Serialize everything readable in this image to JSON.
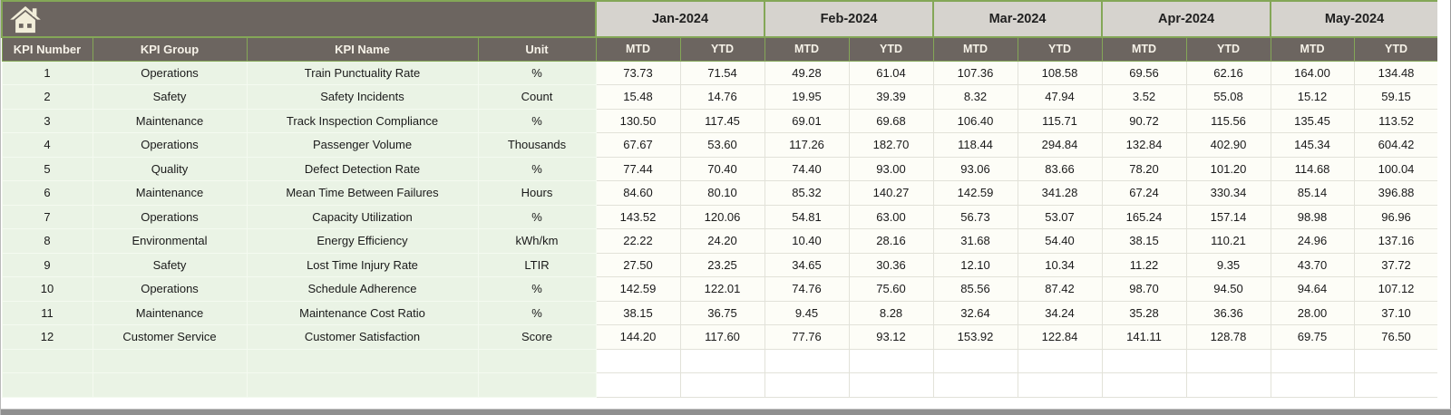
{
  "table": {
    "corner_icon": "home-icon",
    "months": [
      "Jan-2024",
      "Feb-2024",
      "Mar-2024",
      "Apr-2024",
      "May-2024"
    ],
    "sub_headers": [
      "MTD",
      "YTD"
    ],
    "kpi_headers": [
      "KPI Number",
      "KPI Group",
      "KPI Name",
      "Unit"
    ],
    "rows": [
      {
        "number": "1",
        "group": "Operations",
        "name": "Train Punctuality Rate",
        "unit": "%",
        "values": [
          "73.73",
          "71.54",
          "49.28",
          "61.04",
          "107.36",
          "108.58",
          "69.56",
          "62.16",
          "164.00",
          "134.48"
        ]
      },
      {
        "number": "2",
        "group": "Safety",
        "name": "Safety Incidents",
        "unit": "Count",
        "values": [
          "15.48",
          "14.76",
          "19.95",
          "39.39",
          "8.32",
          "47.94",
          "3.52",
          "55.08",
          "15.12",
          "59.15"
        ]
      },
      {
        "number": "3",
        "group": "Maintenance",
        "name": "Track Inspection Compliance",
        "unit": "%",
        "values": [
          "130.50",
          "117.45",
          "69.01",
          "69.68",
          "106.40",
          "115.71",
          "90.72",
          "115.56",
          "135.45",
          "113.52"
        ]
      },
      {
        "number": "4",
        "group": "Operations",
        "name": "Passenger Volume",
        "unit": "Thousands",
        "values": [
          "67.67",
          "53.60",
          "117.26",
          "182.70",
          "118.44",
          "294.84",
          "132.84",
          "402.90",
          "145.34",
          "604.42"
        ]
      },
      {
        "number": "5",
        "group": "Quality",
        "name": "Defect Detection Rate",
        "unit": "%",
        "values": [
          "77.44",
          "70.40",
          "74.40",
          "93.00",
          "93.06",
          "83.66",
          "78.20",
          "101.20",
          "114.68",
          "100.04"
        ]
      },
      {
        "number": "6",
        "group": "Maintenance",
        "name": "Mean Time Between Failures",
        "unit": "Hours",
        "values": [
          "84.60",
          "80.10",
          "85.32",
          "140.27",
          "142.59",
          "341.28",
          "67.24",
          "330.34",
          "85.14",
          "396.88"
        ]
      },
      {
        "number": "7",
        "group": "Operations",
        "name": "Capacity Utilization",
        "unit": "%",
        "values": [
          "143.52",
          "120.06",
          "54.81",
          "63.00",
          "56.73",
          "53.07",
          "165.24",
          "157.14",
          "98.98",
          "96.96"
        ]
      },
      {
        "number": "8",
        "group": "Environmental",
        "name": "Energy Efficiency",
        "unit": "kWh/km",
        "values": [
          "22.22",
          "24.20",
          "10.40",
          "28.16",
          "31.68",
          "54.40",
          "38.15",
          "110.21",
          "24.96",
          "137.16"
        ]
      },
      {
        "number": "9",
        "group": "Safety",
        "name": "Lost Time Injury Rate",
        "unit": "LTIR",
        "values": [
          "27.50",
          "23.25",
          "34.65",
          "30.36",
          "12.10",
          "10.34",
          "11.22",
          "9.35",
          "43.70",
          "37.72"
        ]
      },
      {
        "number": "10",
        "group": "Operations",
        "name": "Schedule Adherence",
        "unit": "%",
        "values": [
          "142.59",
          "122.01",
          "74.76",
          "75.60",
          "85.56",
          "87.42",
          "98.70",
          "94.50",
          "94.64",
          "107.12"
        ]
      },
      {
        "number": "11",
        "group": "Maintenance",
        "name": "Maintenance Cost Ratio",
        "unit": "%",
        "values": [
          "38.15",
          "36.75",
          "9.45",
          "8.28",
          "32.64",
          "34.24",
          "35.28",
          "36.36",
          "28.00",
          "37.10"
        ]
      },
      {
        "number": "12",
        "group": "Customer Service",
        "name": "Customer Satisfaction",
        "unit": "Score",
        "values": [
          "144.20",
          "117.60",
          "77.76",
          "93.12",
          "153.92",
          "122.84",
          "141.11",
          "128.78",
          "69.75",
          "76.50"
        ]
      }
    ],
    "empty_rows": 2
  },
  "colors": {
    "header_bg": "#6c6560",
    "header_text": "#f6f2e8",
    "month_bg": "#d6d3ce",
    "month_text": "#1f1f1f",
    "cell_text": "#1a1a1a",
    "green_cell_bg": "#eaf3e5",
    "value_cell_bg": "#fdfdf7",
    "border_green": "#84a757",
    "green_grid": "#f4faf0",
    "grid_line": "#e2e2d9",
    "bottom_bar": "#8f8f8f",
    "home_icon": "#f1edd9"
  }
}
